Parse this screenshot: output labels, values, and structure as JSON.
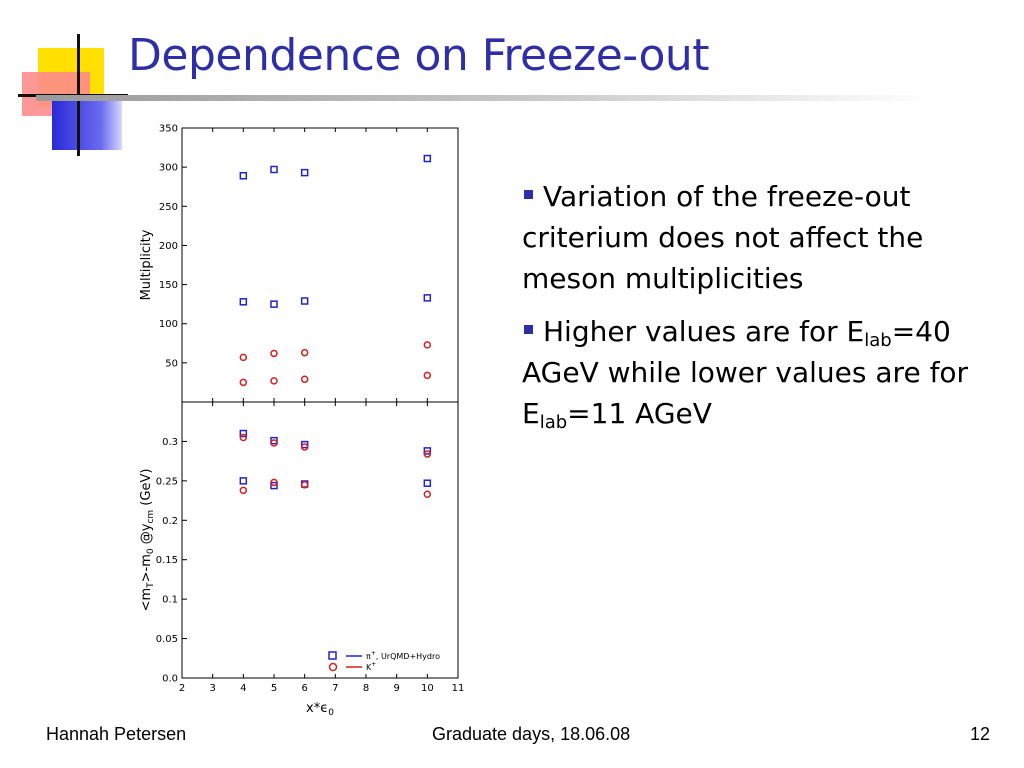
{
  "slide": {
    "title": "Dependence on Freeze-out",
    "bullets": [
      {
        "text": "Variation of the freeze-out criterium does not affect the meson multiplicities"
      },
      {
        "pre": "Higher values are for E",
        "sub1": "lab",
        "mid": "=40 AGeV while lower values are for E",
        "sub2": "lab",
        "post": "=11 AGeV"
      }
    ],
    "footer": {
      "author": "Hannah Petersen",
      "event": "Graduate days, 18.06.08",
      "page": "12"
    }
  },
  "colors": {
    "title": "#2e2ea8",
    "bullet": "#2e2ea8",
    "pion": "#2323c8",
    "kaon": "#d42020",
    "deco_yellow": "#ffe000",
    "deco_red": "#ff8080",
    "deco_blue": "#3838e8"
  },
  "chart_data": [
    {
      "type": "scatter",
      "title": "",
      "xlabel": "",
      "ylabel": "Multiplicity",
      "xlim": [
        2,
        11
      ],
      "ylim": [
        0,
        350
      ],
      "yticks": [
        50,
        100,
        150,
        200,
        250,
        300,
        350
      ],
      "grid": false,
      "series": [
        {
          "name": "π+, UrQMD+Hydro",
          "marker": "square",
          "color": "#2323c8",
          "points": [
            [
              4,
              289
            ],
            [
              5,
              297
            ],
            [
              6,
              293
            ],
            [
              10,
              311
            ],
            [
              4,
              128
            ],
            [
              5,
              125
            ],
            [
              6,
              129
            ],
            [
              10,
              133
            ]
          ]
        },
        {
          "name": "K+",
          "marker": "circle",
          "color": "#d42020",
          "points": [
            [
              4,
              57
            ],
            [
              5,
              62
            ],
            [
              6,
              63
            ],
            [
              10,
              73
            ],
            [
              4,
              25
            ],
            [
              5,
              27
            ],
            [
              6,
              29
            ],
            [
              10,
              34
            ]
          ]
        }
      ]
    },
    {
      "type": "scatter",
      "title": "",
      "xlabel": "x*ϵ0",
      "ylabel": "<mT>-m0 @ycm (GeV)",
      "xlim": [
        2,
        11
      ],
      "ylim": [
        0,
        0.35
      ],
      "xticks": [
        2,
        3,
        4,
        5,
        6,
        7,
        8,
        9,
        10,
        11
      ],
      "yticks": [
        0,
        0.05,
        0.1,
        0.15,
        0.2,
        0.25,
        0.3
      ],
      "ytick_labels": [
        "0.0",
        "0.05",
        "0.1",
        "0.15",
        "0.2",
        "0.25",
        "0.3"
      ],
      "grid": false,
      "legend_position": "bottom-right",
      "legend": [
        {
          "label": "π+, UrQMD+Hydro",
          "marker": "square",
          "color": "#2323c8"
        },
        {
          "label": "K+",
          "marker": "circle",
          "color": "#d42020"
        }
      ],
      "series": [
        {
          "name": "π+, UrQMD+Hydro",
          "marker": "square",
          "color": "#2323c8",
          "points": [
            [
              4,
              0.31
            ],
            [
              5,
              0.301
            ],
            [
              6,
              0.296
            ],
            [
              10,
              0.288
            ],
            [
              4,
              0.25
            ],
            [
              5,
              0.244
            ],
            [
              6,
              0.246
            ],
            [
              10,
              0.247
            ]
          ]
        },
        {
          "name": "K+",
          "marker": "circle",
          "color": "#d42020",
          "points": [
            [
              4,
              0.305
            ],
            [
              5,
              0.298
            ],
            [
              6,
              0.293
            ],
            [
              10,
              0.284
            ],
            [
              4,
              0.238
            ],
            [
              5,
              0.248
            ],
            [
              6,
              0.245
            ],
            [
              10,
              0.233
            ]
          ]
        }
      ]
    }
  ]
}
